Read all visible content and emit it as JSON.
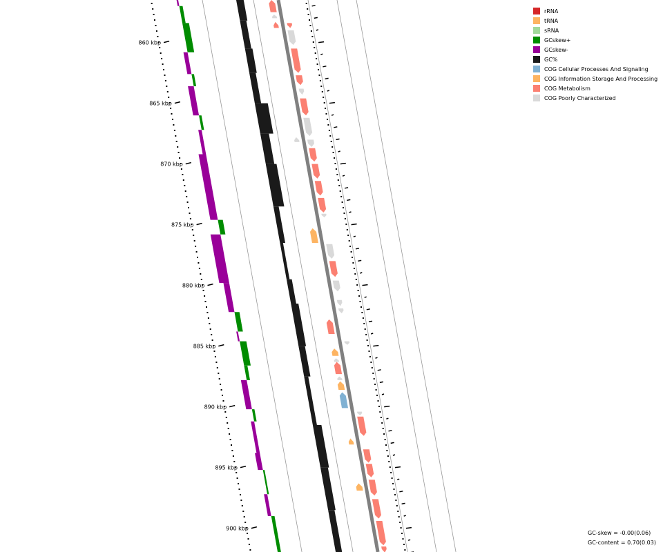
{
  "chart_data": {
    "type": "circular-genome-map-zoom",
    "position_unit": "kbp",
    "visible_range": [
      856.5,
      902
    ],
    "position_ticks": [
      {
        "label": "860 kbp",
        "pos": 860
      },
      {
        "label": "865 kbp",
        "pos": 865
      },
      {
        "label": "870 kbp",
        "pos": 870
      },
      {
        "label": "875 kbp",
        "pos": 875
      },
      {
        "label": "880 kbp",
        "pos": 880
      },
      {
        "label": "885 kbp",
        "pos": 885
      },
      {
        "label": "890 kbp",
        "pos": 890
      },
      {
        "label": "895 kbp",
        "pos": 895
      },
      {
        "label": "900 kbp",
        "pos": 900
      }
    ],
    "gc_skew": [
      {
        "start": 856.5,
        "end": 857.0,
        "value": -0.02
      },
      {
        "start": 857.0,
        "end": 858.4,
        "value": 0.04
      },
      {
        "start": 858.4,
        "end": 860.8,
        "value": 0.08
      },
      {
        "start": 860.8,
        "end": 862.6,
        "value": -0.05
      },
      {
        "start": 862.6,
        "end": 863.6,
        "value": 0.03
      },
      {
        "start": 863.6,
        "end": 866.0,
        "value": -0.07
      },
      {
        "start": 866.0,
        "end": 867.2,
        "value": 0.03
      },
      {
        "start": 867.2,
        "end": 869.2,
        "value": -0.04
      },
      {
        "start": 869.2,
        "end": 874.6,
        "value": -0.09
      },
      {
        "start": 874.6,
        "end": 875.8,
        "value": 0.06
      },
      {
        "start": 875.8,
        "end": 879.8,
        "value": -0.12
      },
      {
        "start": 879.8,
        "end": 882.2,
        "value": -0.07
      },
      {
        "start": 882.2,
        "end": 883.8,
        "value": 0.06
      },
      {
        "start": 883.8,
        "end": 884.6,
        "value": -0.02
      },
      {
        "start": 884.6,
        "end": 886.6,
        "value": 0.08
      },
      {
        "start": 886.6,
        "end": 887.8,
        "value": 0.04
      },
      {
        "start": 887.8,
        "end": 890.2,
        "value": -0.07
      },
      {
        "start": 890.2,
        "end": 891.2,
        "value": 0.03
      },
      {
        "start": 891.2,
        "end": 893.8,
        "value": -0.04
      },
      {
        "start": 893.8,
        "end": 895.2,
        "value": -0.06
      },
      {
        "start": 895.2,
        "end": 897.2,
        "value": 0.02
      },
      {
        "start": 897.2,
        "end": 899.0,
        "value": -0.04
      },
      {
        "start": 899.0,
        "end": 902.0,
        "value": 0.04
      }
    ],
    "gc_content": [
      {
        "start": 856.5,
        "end": 858.2,
        "value": 0.73
      },
      {
        "start": 858.2,
        "end": 860.5,
        "value": 0.72
      },
      {
        "start": 860.5,
        "end": 862.5,
        "value": 0.73
      },
      {
        "start": 862.5,
        "end": 865.0,
        "value": 0.72
      },
      {
        "start": 865.0,
        "end": 867.5,
        "value": 0.78
      },
      {
        "start": 867.5,
        "end": 870.0,
        "value": 0.74
      },
      {
        "start": 870.0,
        "end": 873.5,
        "value": 0.76
      },
      {
        "start": 873.5,
        "end": 876.5,
        "value": 0.71
      },
      {
        "start": 876.5,
        "end": 879.5,
        "value": 0.69
      },
      {
        "start": 879.5,
        "end": 881.5,
        "value": 0.71
      },
      {
        "start": 881.5,
        "end": 885.0,
        "value": 0.73
      },
      {
        "start": 885.0,
        "end": 887.5,
        "value": 0.72
      },
      {
        "start": 887.5,
        "end": 891.5,
        "value": 0.7
      },
      {
        "start": 891.5,
        "end": 895.0,
        "value": 0.74
      },
      {
        "start": 895.0,
        "end": 898.5,
        "value": 0.73
      },
      {
        "start": 898.5,
        "end": 902.0,
        "value": 0.72
      }
    ],
    "features": [
      {
        "start": 856.5,
        "end": 857.5,
        "strand": "+",
        "category": "COG Metabolism"
      },
      {
        "start": 857.7,
        "end": 858.0,
        "strand": "+",
        "category": "COG Poorly Characterized"
      },
      {
        "start": 858.3,
        "end": 858.8,
        "strand": "+",
        "category": "COG Metabolism"
      },
      {
        "start": 858.4,
        "end": 858.8,
        "strand": "-",
        "category": "COG Metabolism"
      },
      {
        "start": 859.0,
        "end": 860.2,
        "strand": "-",
        "category": "COG Poorly Characterized"
      },
      {
        "start": 860.5,
        "end": 862.5,
        "strand": "-",
        "category": "COG Metabolism"
      },
      {
        "start": 862.7,
        "end": 863.5,
        "strand": "-",
        "category": "COG Metabolism"
      },
      {
        "start": 863.8,
        "end": 864.3,
        "strand": "-",
        "category": "COG Poorly Characterized"
      },
      {
        "start": 864.6,
        "end": 866.0,
        "strand": "-",
        "category": "COG Metabolism"
      },
      {
        "start": 866.2,
        "end": 867.7,
        "strand": "-",
        "category": "COG Poorly Characterized"
      },
      {
        "start": 867.8,
        "end": 868.2,
        "strand": "+",
        "category": "COG Poorly Characterized"
      },
      {
        "start": 868.0,
        "end": 868.6,
        "strand": "-",
        "category": "COG Poorly Characterized"
      },
      {
        "start": 868.7,
        "end": 869.8,
        "strand": "-",
        "category": "COG Metabolism"
      },
      {
        "start": 870.0,
        "end": 871.2,
        "strand": "-",
        "category": "COG Metabolism"
      },
      {
        "start": 871.4,
        "end": 872.6,
        "strand": "-",
        "category": "COG Metabolism"
      },
      {
        "start": 872.8,
        "end": 874.0,
        "strand": "-",
        "category": "COG Metabolism"
      },
      {
        "start": 874.1,
        "end": 874.4,
        "strand": "-",
        "category": "COG Poorly Characterized"
      },
      {
        "start": 875.3,
        "end": 876.5,
        "strand": "+",
        "category": "COG Information Storage And Processing"
      },
      {
        "start": 876.6,
        "end": 877.8,
        "strand": "-",
        "category": "COG Poorly Characterized"
      },
      {
        "start": 878.0,
        "end": 879.3,
        "strand": "-",
        "category": "COG Metabolism"
      },
      {
        "start": 879.6,
        "end": 880.5,
        "strand": "-",
        "category": "COG Poorly Characterized"
      },
      {
        "start": 881.2,
        "end": 881.7,
        "strand": "-",
        "category": "COG Poorly Characterized"
      },
      {
        "start": 881.9,
        "end": 882.3,
        "strand": "-",
        "category": "COG Poorly Characterized"
      },
      {
        "start": 882.8,
        "end": 884.0,
        "strand": "+",
        "category": "COG Metabolism"
      },
      {
        "start": 884.6,
        "end": 884.9,
        "strand": "-",
        "category": "COG Poorly Characterized"
      },
      {
        "start": 885.2,
        "end": 885.8,
        "strand": "+",
        "category": "COG Information Storage And Processing"
      },
      {
        "start": 886.0,
        "end": 886.3,
        "strand": "+",
        "category": "COG Poorly Characterized"
      },
      {
        "start": 886.3,
        "end": 887.3,
        "strand": "+",
        "category": "COG Metabolism"
      },
      {
        "start": 887.5,
        "end": 887.8,
        "strand": "+",
        "category": "COG Poorly Characterized"
      },
      {
        "start": 887.9,
        "end": 888.6,
        "strand": "+",
        "category": "COG Information Storage And Processing"
      },
      {
        "start": 888.8,
        "end": 890.1,
        "strand": "+",
        "category": "COG Cellular Processes And Signaling"
      },
      {
        "start": 890.4,
        "end": 890.7,
        "strand": "-",
        "category": "COG Poorly Characterized"
      },
      {
        "start": 890.8,
        "end": 892.4,
        "strand": "-",
        "category": "COG Metabolism"
      },
      {
        "start": 892.6,
        "end": 893.1,
        "strand": "+",
        "category": "COG Information Storage And Processing"
      },
      {
        "start": 893.5,
        "end": 894.6,
        "strand": "-",
        "category": "COG Metabolism"
      },
      {
        "start": 894.7,
        "end": 895.8,
        "strand": "-",
        "category": "COG Metabolism"
      },
      {
        "start": 896.0,
        "end": 897.3,
        "strand": "-",
        "category": "COG Metabolism"
      },
      {
        "start": 896.3,
        "end": 896.9,
        "strand": "+",
        "category": "COG Information Storage And Processing"
      },
      {
        "start": 897.6,
        "end": 899.2,
        "strand": "-",
        "category": "COG Metabolism"
      },
      {
        "start": 899.4,
        "end": 901.4,
        "strand": "-",
        "category": "COG Metabolism"
      },
      {
        "start": 901.5,
        "end": 902.0,
        "strand": "-",
        "category": "COG Metabolism"
      }
    ],
    "legend": [
      {
        "label": "rRNA",
        "color": "#d62728"
      },
      {
        "label": "tRNA",
        "color": "#fdb462"
      },
      {
        "label": "sRNA",
        "color": "#a1d99b"
      },
      {
        "label": "GCskew+",
        "color": "#008c00"
      },
      {
        "label": "GCskew-",
        "color": "#990099"
      },
      {
        "label": "GC%",
        "color": "#1a1a1a"
      },
      {
        "label": "COG Cellular Processes And Signaling",
        "color": "#80b1d3"
      },
      {
        "label": "COG Information Storage And Processing",
        "color": "#fdb462"
      },
      {
        "label": "COG Metabolism",
        "color": "#fb8072"
      },
      {
        "label": "COG Poorly Characterized",
        "color": "#d9d9d9"
      }
    ],
    "stats": {
      "gc_skew": "GC-skew = -0.00(0.06)",
      "gc_content": "GC-content = 0.70(0.03)"
    }
  }
}
